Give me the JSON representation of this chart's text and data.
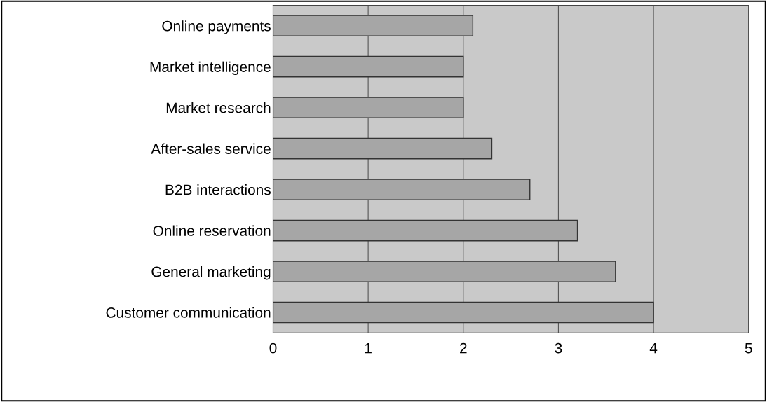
{
  "chart_data": {
    "type": "bar",
    "orientation": "horizontal",
    "categories": [
      "Online payments",
      "Market intelligence",
      "Market research",
      "After-sales service",
      "B2B interactions",
      "Online reservation",
      "General marketing",
      "Customer communication"
    ],
    "values": [
      2.1,
      2.0,
      2.0,
      2.3,
      2.7,
      3.2,
      3.6,
      4.0
    ],
    "color": "#a6a6a6",
    "xlim": [
      0,
      5
    ],
    "xticks": [
      0,
      1,
      2,
      3,
      4,
      5
    ],
    "grid": "x",
    "legend": false
  }
}
